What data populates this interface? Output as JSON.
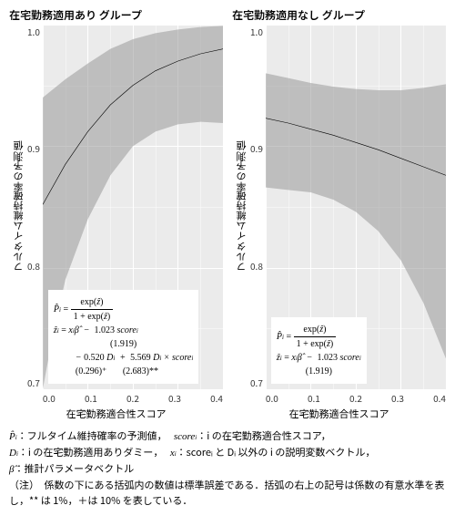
{
  "panels": [
    {
      "title": "在宅勤務適用あり グループ",
      "ylabel": "フルタイム維持確率の予測値",
      "xlabel": "在宅勤務適合性スコア",
      "ylim": [
        0.7,
        1.0
      ],
      "yticks": [
        "1.0",
        "0.9",
        "0.8",
        "0.7"
      ],
      "xlim": [
        0.0,
        0.4
      ],
      "xticks": [
        "0.0",
        "0.1",
        "0.2",
        "0.3",
        "0.4"
      ],
      "line": [
        [
          0.0,
          0.852
        ],
        [
          0.05,
          0.885
        ],
        [
          0.1,
          0.912
        ],
        [
          0.15,
          0.934
        ],
        [
          0.2,
          0.95
        ],
        [
          0.25,
          0.962
        ],
        [
          0.3,
          0.97
        ],
        [
          0.35,
          0.976
        ],
        [
          0.4,
          0.98
        ]
      ],
      "ribbon_hi": [
        [
          0.0,
          0.94
        ],
        [
          0.05,
          0.955
        ],
        [
          0.1,
          0.968
        ],
        [
          0.15,
          0.98
        ],
        [
          0.2,
          0.988
        ],
        [
          0.25,
          0.993
        ],
        [
          0.3,
          0.996
        ],
        [
          0.35,
          0.998
        ],
        [
          0.4,
          0.999
        ]
      ],
      "ribbon_lo": [
        [
          0.0,
          0.7
        ],
        [
          0.02,
          0.74
        ],
        [
          0.05,
          0.79
        ],
        [
          0.1,
          0.84
        ],
        [
          0.15,
          0.876
        ],
        [
          0.2,
          0.9
        ],
        [
          0.25,
          0.912
        ],
        [
          0.3,
          0.918
        ],
        [
          0.35,
          0.92
        ],
        [
          0.4,
          0.919
        ]
      ],
      "line_color": "#000000",
      "ribbon_color": "#999999",
      "ribbon_opacity": 0.55,
      "bg": "#ebebeb",
      "grid_color": "#ffffff",
      "formula": {
        "line1": "P̂ᵢ = exp(ẑ) / (1 + exp(ẑ))",
        "line2": "ẑᵢ = xᵢβ̂ − 1.023 scoreᵢ",
        "se1": "(1.919)",
        "line3": "− 0.520 Dᵢ + 5.569 Dᵢ × scoreᵢ",
        "se2a": "(0.296)⁺",
        "se2b": "(2.683)**"
      }
    },
    {
      "title": "在宅勤務適用なし グループ",
      "ylabel": "フルタイム維持確率の予測値",
      "xlabel": "在宅勤務適合性スコア",
      "ylim": [
        0.7,
        1.0
      ],
      "yticks": [
        "1.0",
        "0.9",
        "0.8",
        "0.7"
      ],
      "xlim": [
        0.0,
        0.4
      ],
      "xticks": [
        "0.0",
        "0.1",
        "0.2",
        "0.3",
        "0.4"
      ],
      "line": [
        [
          0.0,
          0.923
        ],
        [
          0.05,
          0.919
        ],
        [
          0.1,
          0.914
        ],
        [
          0.15,
          0.909
        ],
        [
          0.2,
          0.903
        ],
        [
          0.25,
          0.897
        ],
        [
          0.3,
          0.89
        ],
        [
          0.35,
          0.883
        ],
        [
          0.4,
          0.876
        ]
      ],
      "ribbon_hi": [
        [
          0.0,
          0.96
        ],
        [
          0.05,
          0.956
        ],
        [
          0.1,
          0.952
        ],
        [
          0.15,
          0.949
        ],
        [
          0.2,
          0.947
        ],
        [
          0.25,
          0.946
        ],
        [
          0.3,
          0.946
        ],
        [
          0.35,
          0.948
        ],
        [
          0.4,
          0.951
        ]
      ],
      "ribbon_lo": [
        [
          0.0,
          0.866
        ],
        [
          0.05,
          0.864
        ],
        [
          0.1,
          0.862
        ],
        [
          0.15,
          0.856
        ],
        [
          0.2,
          0.846
        ],
        [
          0.25,
          0.83
        ],
        [
          0.3,
          0.806
        ],
        [
          0.35,
          0.771
        ],
        [
          0.4,
          0.725
        ]
      ],
      "line_color": "#000000",
      "ribbon_color": "#999999",
      "ribbon_opacity": 0.55,
      "bg": "#ebebeb",
      "grid_color": "#ffffff",
      "formula": {
        "line1": "P̂ᵢ = exp(ẑ) / (1 + exp(ẑ))",
        "line2": "ẑᵢ = xᵢβ̂ − 1.023 scoreᵢ",
        "se1": "(1.919)"
      }
    }
  ],
  "footnotes": {
    "l1a": "P̂ᵢ：フルタイム維持確率の予測値，",
    "l1b": "scoreᵢ：i の在宅勤務適合性スコア，",
    "l2a": "Dᵢ：i の在宅勤務適用ありダミー，",
    "l2b": "xᵢ：scoreᵢ と Dᵢ 以外の i の説明変数ベクトル，",
    "l3": "β̂：推計パラメータベクトル",
    "note": "（注）　係数の下にある括弧内の数値は標準誤差である．括弧の右上の記号は係数の有意水準を表し，** は 1%，＋は 10% を表している．"
  }
}
